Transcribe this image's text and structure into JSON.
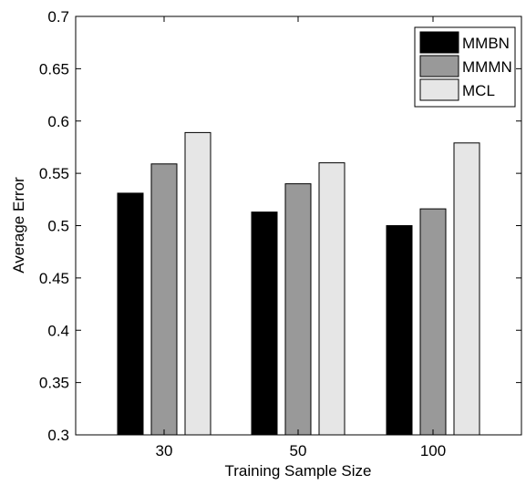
{
  "chart_data": {
    "type": "bar",
    "title": "",
    "xlabel": "Training Sample Size",
    "ylabel": "Average Error",
    "categories": [
      "30",
      "50",
      "100"
    ],
    "series": [
      {
        "name": "MMBN",
        "values": [
          0.531,
          0.513,
          0.5
        ],
        "color": "#000000"
      },
      {
        "name": "MMMN",
        "values": [
          0.559,
          0.54,
          0.516
        ],
        "color": "#999999"
      },
      {
        "name": "MCL",
        "values": [
          0.589,
          0.56,
          0.579
        ],
        "color": "#e6e6e6"
      }
    ],
    "ylim": [
      0.3,
      0.7
    ],
    "yticks": [
      "0.3",
      "0.35",
      "0.4",
      "0.45",
      "0.5",
      "0.55",
      "0.6",
      "0.65",
      "0.7"
    ],
    "grid": false,
    "legend": "top-right"
  }
}
